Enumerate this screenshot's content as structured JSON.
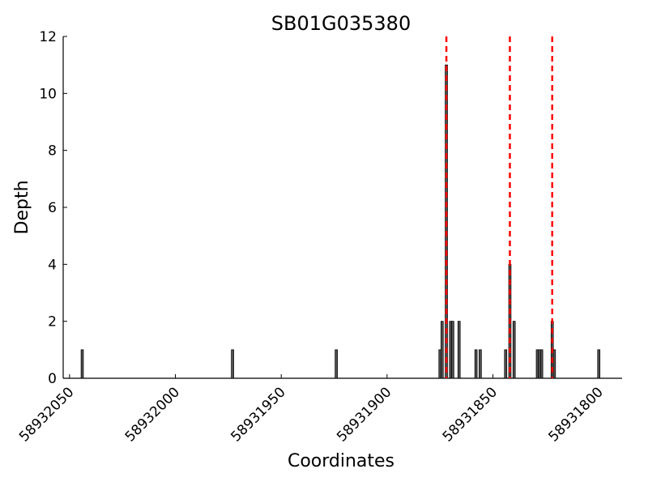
{
  "chart_data": {
    "type": "bar",
    "title": "SB01G035380",
    "x_label": "Coordinates",
    "y_label": "Depth",
    "x": [
      58932044,
      58931973,
      58931924,
      58931875,
      58931874,
      58931872,
      58931870,
      58931869,
      58931866,
      58931858,
      58931856,
      58931844,
      58931842,
      58931840,
      58931829,
      58931828,
      58931827,
      58931822,
      58931821,
      58931800
    ],
    "values": [
      1,
      1,
      1,
      1,
      2,
      11,
      2,
      2,
      2,
      1,
      1,
      1,
      4,
      2,
      1,
      1,
      1,
      2,
      1,
      1
    ],
    "color": "#555555",
    "vlines": {
      "x": [
        58931872,
        58931842,
        58931822
      ],
      "color": "#ff0000"
    },
    "xlim": [
      58932053,
      58931789
    ],
    "xticks": [
      58932050,
      58932000,
      58931950,
      58931900,
      58931850,
      58931800
    ],
    "ylim": [
      0,
      12
    ],
    "yticks": [
      0,
      2,
      4,
      6,
      8,
      10,
      12
    ]
  }
}
